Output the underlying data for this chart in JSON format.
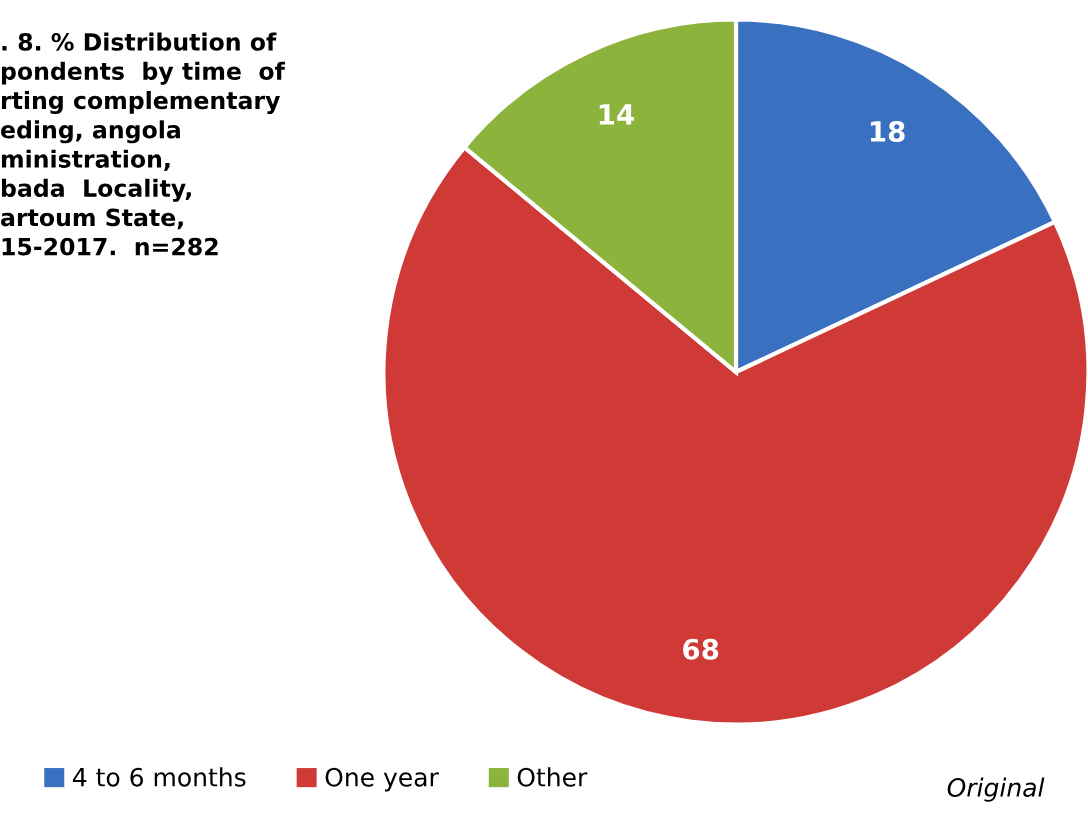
{
  "chart_data": {
    "type": "pie",
    "title": ". 8. % Distribution of\npondents  by time  of\nrting complementary\neding, angola\nministration,\nbada  Locality,\nartoum State,\n15-2017.  n=282",
    "categories": [
      "4 to 6 months",
      "One year",
      "Other"
    ],
    "values": [
      18,
      68,
      14
    ],
    "colors": [
      "#3a70c0",
      "#d03a36",
      "#8cb43c"
    ],
    "data_labels": true,
    "legend": "bottom",
    "annotations": [
      "Original"
    ]
  }
}
